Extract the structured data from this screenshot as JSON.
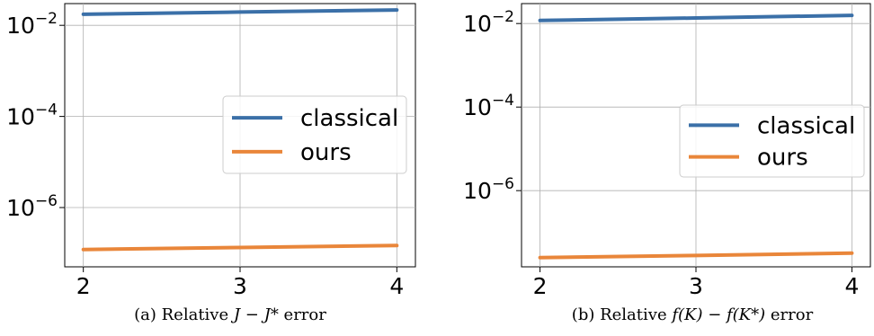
{
  "chart_data": [
    {
      "type": "line",
      "caption": {
        "prefix": "(a) Relative ",
        "math": "J − J*",
        "suffix": " error"
      },
      "x": [
        2,
        3,
        4
      ],
      "xticks": [
        "2",
        "3",
        "4"
      ],
      "yscale": "log",
      "yticks": [
        {
          "base": "10",
          "exp": "−2",
          "value": 0.01
        },
        {
          "base": "10",
          "exp": "−4",
          "value": 0.0001
        },
        {
          "base": "10",
          "exp": "−6",
          "value": 1e-06
        }
      ],
      "ylim": [
        5e-08,
        0.03
      ],
      "grid": true,
      "legend_position": "center-right",
      "series": [
        {
          "name": "classical",
          "color": "#3b70a8",
          "values": [
            0.0175,
            0.0196,
            0.0217
          ]
        },
        {
          "name": "ours",
          "color": "#e9863a",
          "values": [
            1.2e-07,
            1.33e-07,
            1.47e-07
          ]
        }
      ]
    },
    {
      "type": "line",
      "caption": {
        "prefix": "(b) Relative ",
        "math": "f(K) − f(K*)",
        "suffix": " error"
      },
      "x": [
        2,
        3,
        4
      ],
      "xticks": [
        "2",
        "3",
        "4"
      ],
      "yscale": "log",
      "yticks": [
        {
          "base": "10",
          "exp": "−2",
          "value": 0.01
        },
        {
          "base": "10",
          "exp": "−4",
          "value": 0.0001
        },
        {
          "base": "10",
          "exp": "−6",
          "value": 1e-06
        }
      ],
      "ylim": [
        1.5e-08,
        0.03
      ],
      "grid": true,
      "legend_position": "center-right",
      "series": [
        {
          "name": "classical",
          "color": "#3b70a8",
          "values": [
            0.0118,
            0.0136,
            0.0157
          ]
        },
        {
          "name": "ours",
          "color": "#e9863a",
          "values": [
            2.5e-08,
            2.8e-08,
            3.2e-08
          ]
        }
      ]
    }
  ]
}
